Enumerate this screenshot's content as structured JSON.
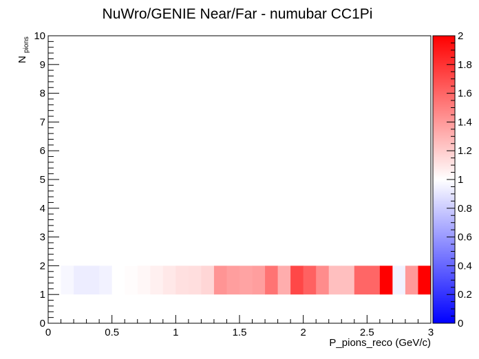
{
  "chart_data": {
    "type": "heatmap",
    "title": "NuWro/GENIE Near/Far - numubar CC1Pi",
    "xlabel": "P_pions_reco (GeV/c)",
    "ylabel": "N",
    "ylabel_sub": "pions",
    "xlim": [
      0,
      3
    ],
    "ylim": [
      0,
      10
    ],
    "x_ticks": [
      {
        "v": 0,
        "label": "0"
      },
      {
        "v": 0.5,
        "label": "0.5"
      },
      {
        "v": 1,
        "label": "1"
      },
      {
        "v": 1.5,
        "label": "1.5"
      },
      {
        "v": 2,
        "label": "2"
      },
      {
        "v": 2.5,
        "label": "2.5"
      },
      {
        "v": 3,
        "label": "3"
      }
    ],
    "y_ticks": [
      {
        "v": 0,
        "label": "0"
      },
      {
        "v": 1,
        "label": "1"
      },
      {
        "v": 2,
        "label": "2"
      },
      {
        "v": 3,
        "label": "3"
      },
      {
        "v": 4,
        "label": "4"
      },
      {
        "v": 5,
        "label": "5"
      },
      {
        "v": 6,
        "label": "6"
      },
      {
        "v": 7,
        "label": "7"
      },
      {
        "v": 8,
        "label": "8"
      },
      {
        "v": 9,
        "label": "9"
      },
      {
        "v": 10,
        "label": "10"
      }
    ],
    "zlim": [
      0,
      2
    ],
    "z_ticks": [
      {
        "v": 0,
        "label": "0"
      },
      {
        "v": 0.2,
        "label": "0.2"
      },
      {
        "v": 0.4,
        "label": "0.4"
      },
      {
        "v": 0.6,
        "label": "0.6"
      },
      {
        "v": 0.8,
        "label": "0.8"
      },
      {
        "v": 1,
        "label": "1"
      },
      {
        "v": 1.2,
        "label": "1.2"
      },
      {
        "v": 1.4,
        "label": "1.4"
      },
      {
        "v": 1.6,
        "label": "1.6"
      },
      {
        "v": 1.8,
        "label": "1.8"
      },
      {
        "v": 2,
        "label": "2"
      }
    ],
    "colormap": {
      "low": "#0000ff",
      "mid": "#ffffff",
      "high": "#ff0000"
    },
    "row": {
      "y0": 1,
      "y1": 2
    },
    "bin_width": 0.1,
    "bins_x0": [
      0.1,
      0.2,
      0.3,
      0.4,
      0.5,
      0.6,
      0.7,
      0.8,
      0.9,
      1.0,
      1.1,
      1.2,
      1.3,
      1.4,
      1.5,
      1.6,
      1.7,
      1.8,
      1.9,
      2.0,
      2.1,
      2.2,
      2.3,
      2.4,
      2.5,
      2.6,
      2.7,
      2.8,
      2.9
    ],
    "bin_values": [
      0.97,
      0.93,
      0.93,
      0.95,
      1.0,
      1.01,
      1.03,
      1.06,
      1.09,
      1.12,
      1.13,
      1.16,
      1.42,
      1.38,
      1.36,
      1.38,
      1.55,
      1.32,
      1.72,
      1.62,
      1.45,
      1.25,
      1.25,
      1.6,
      1.6,
      2.0,
      0.95,
      1.4,
      2.0
    ]
  }
}
